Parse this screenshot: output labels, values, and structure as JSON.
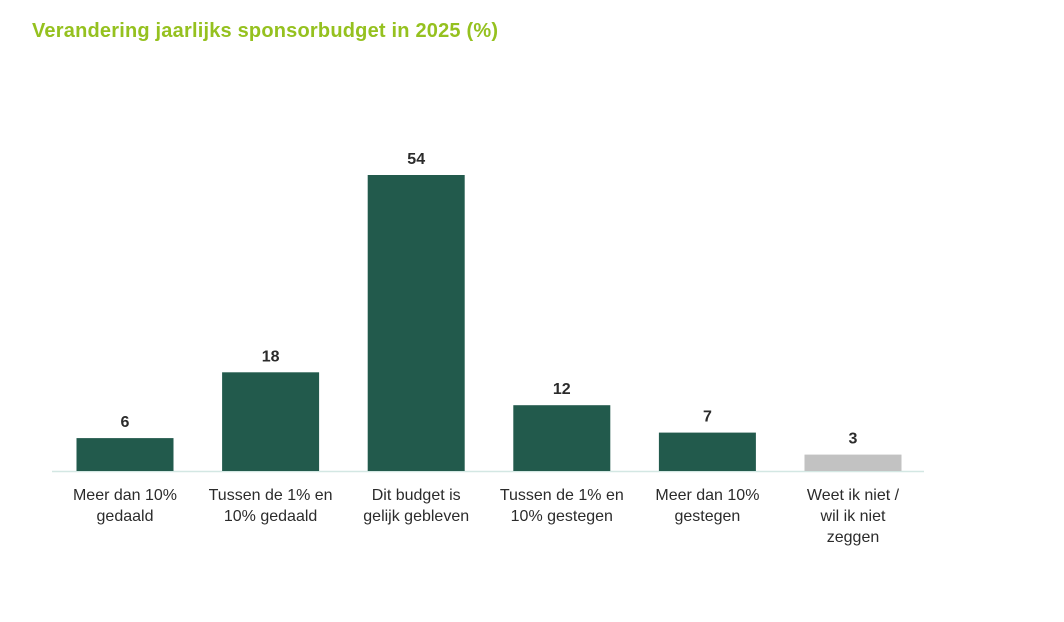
{
  "title": "Verandering jaarlijks sponsorbudget in 2025 (%)",
  "chart_data": {
    "type": "bar",
    "title": "Verandering jaarlijks sponsorbudget in 2025 (%)",
    "categories": [
      "Meer dan 10% gedaald",
      "Tussen de 1% en 10% gedaald",
      "Dit budget is gelijk gebleven",
      "Tussen de 1% en 10% gestegen",
      "Meer dan 10% gestegen",
      "Weet ik niet / wil ik niet zeggen"
    ],
    "category_lines": [
      [
        "Meer dan 10%",
        "gedaald"
      ],
      [
        "Tussen de 1% en",
        "10% gedaald"
      ],
      [
        "Dit budget is",
        "gelijk gebleven"
      ],
      [
        "Tussen de 1% en",
        "10% gestegen"
      ],
      [
        "Meer dan 10%",
        "gestegen"
      ],
      [
        "Weet ik niet /",
        "wil ik niet",
        "zeggen"
      ]
    ],
    "values": [
      6,
      18,
      54,
      12,
      7,
      3
    ],
    "colors": [
      "#225a4c",
      "#225a4c",
      "#225a4c",
      "#225a4c",
      "#225a4c",
      "#c2c2c2"
    ],
    "xlabel": "",
    "ylabel": "",
    "ylim": [
      0,
      54
    ],
    "grid": false,
    "legend": "none"
  }
}
